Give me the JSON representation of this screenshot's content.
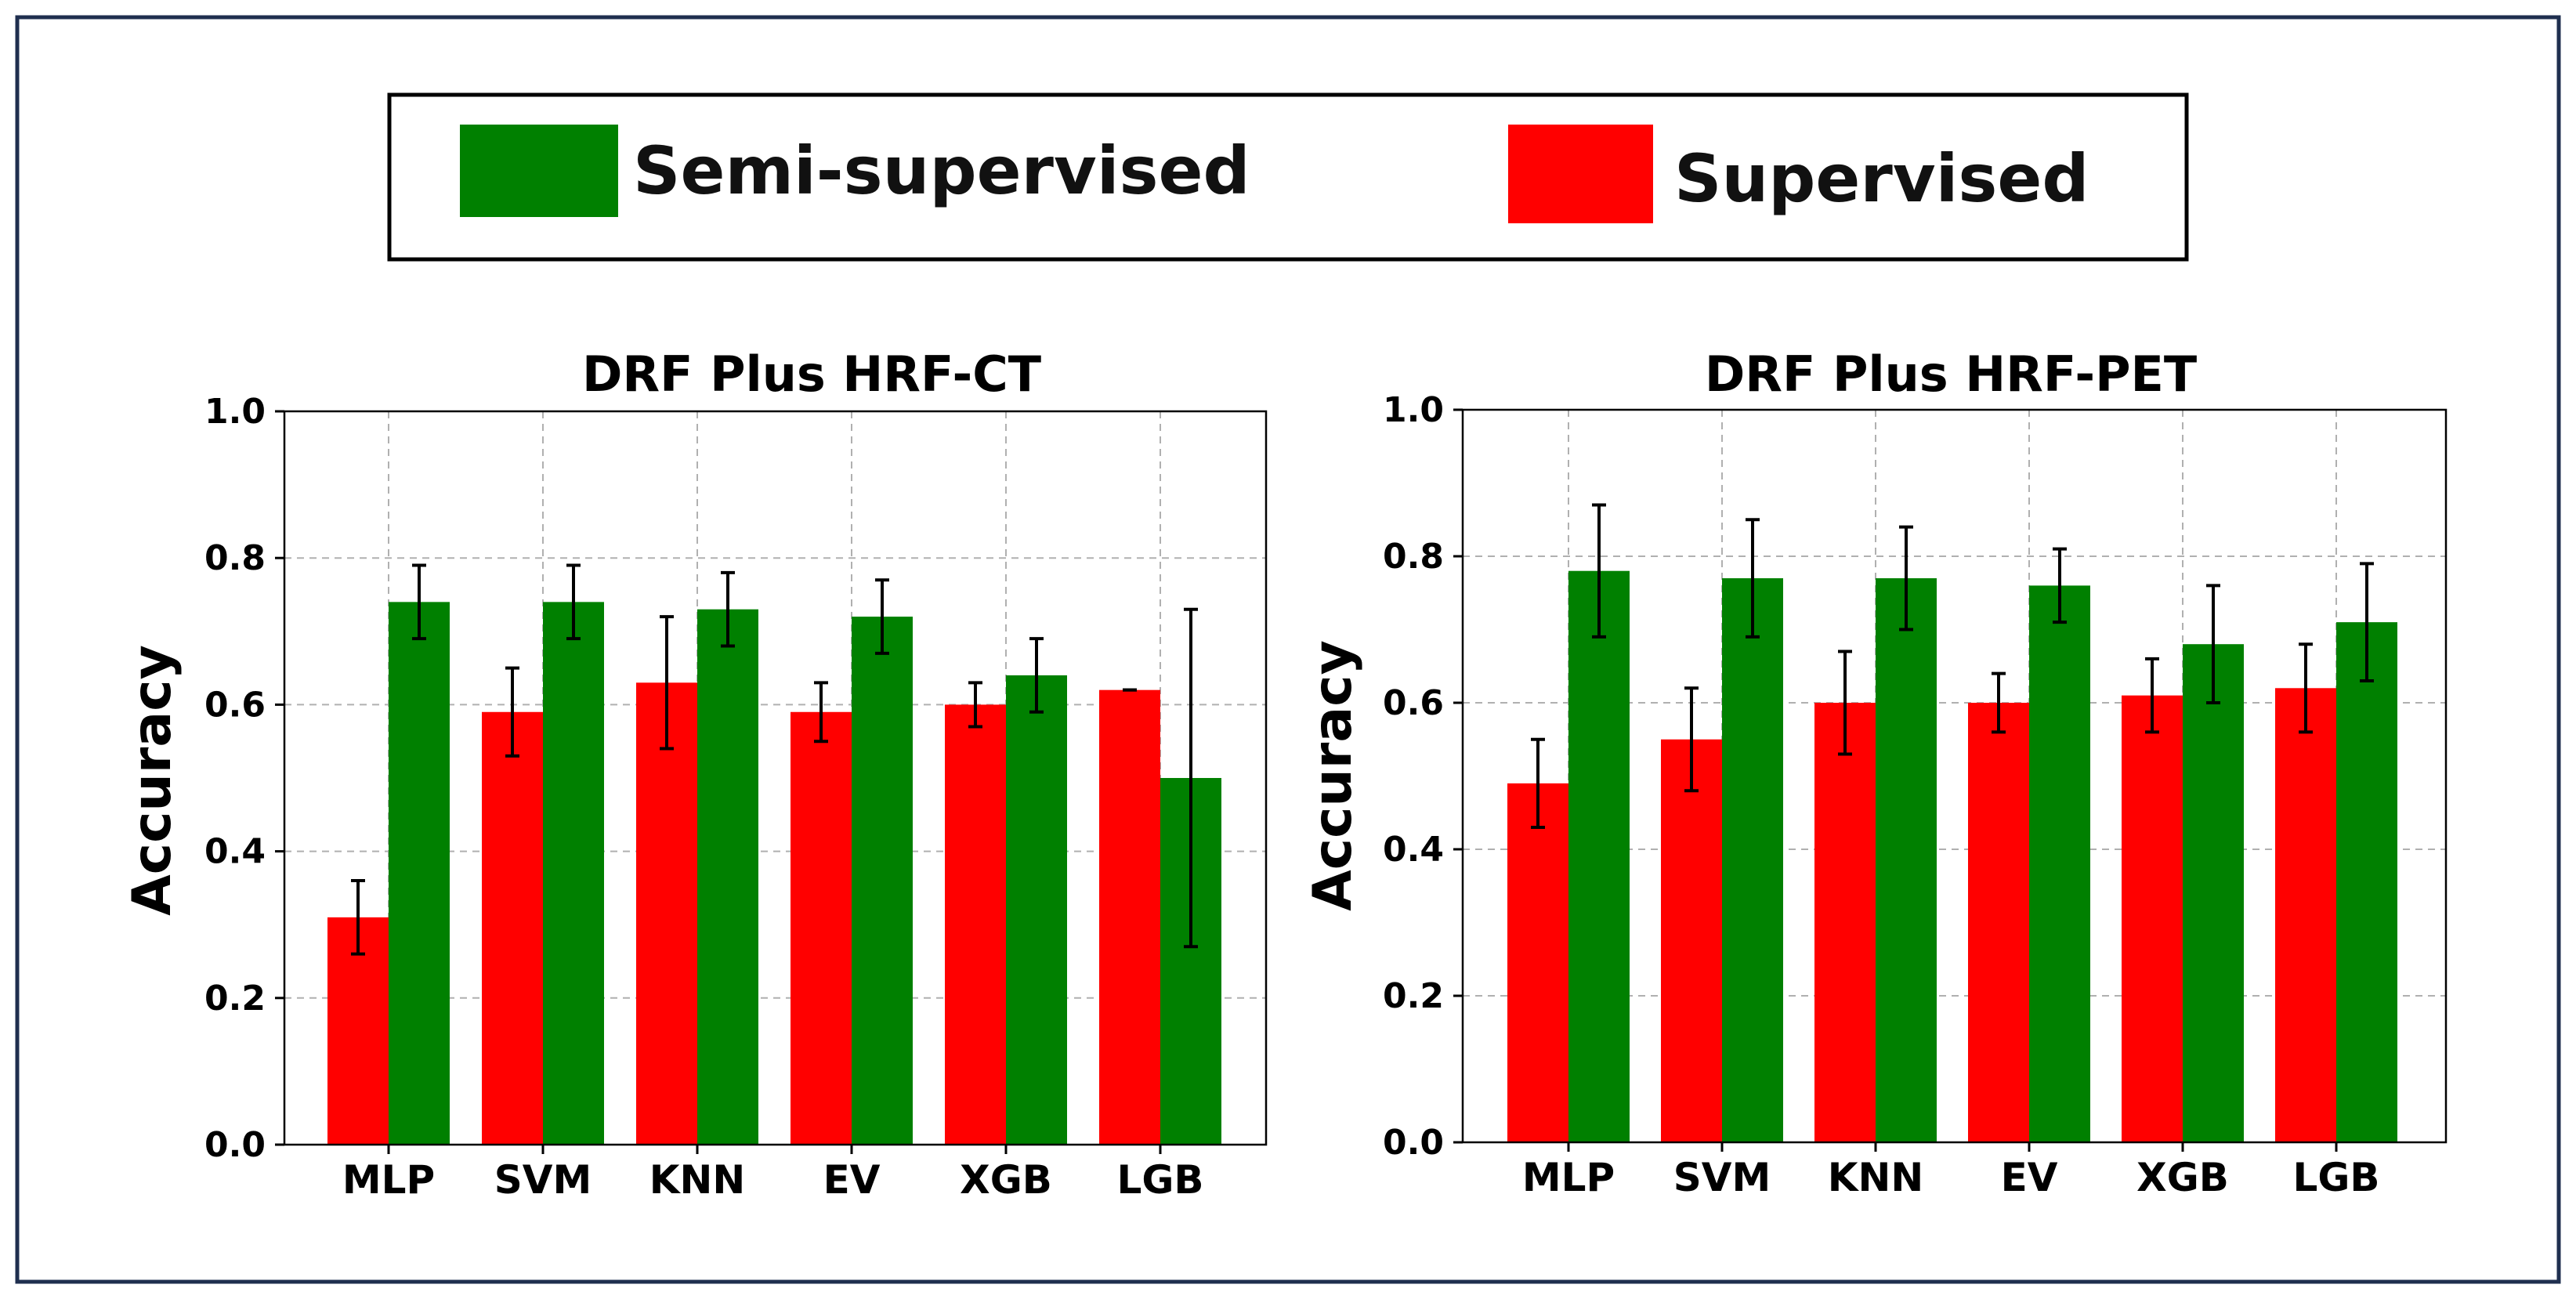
{
  "legend": {
    "items": [
      {
        "label": "Semi-supervised",
        "color": "#008000"
      },
      {
        "label": "Supervised",
        "color": "#ff0000"
      }
    ]
  },
  "colors": {
    "frame": "#1f2f4f",
    "supervised": "#ff0000",
    "semi": "#008000"
  },
  "y_ticks": [
    "0.0",
    "0.2",
    "0.4",
    "0.6",
    "0.8",
    "1.0"
  ],
  "chart_data": [
    {
      "type": "bar",
      "title": "DRF Plus HRF-CT",
      "xlabel": "",
      "ylabel": "Accuracy",
      "ylim": [
        0,
        1
      ],
      "grid": true,
      "categories": [
        "MLP",
        "SVM",
        "KNN",
        "EV",
        "XGB",
        "LGB"
      ],
      "series": [
        {
          "name": "Supervised",
          "values": [
            0.31,
            0.59,
            0.63,
            0.59,
            0.6,
            0.62
          ],
          "errors": [
            0.05,
            0.06,
            0.09,
            0.04,
            0.03,
            0.0
          ]
        },
        {
          "name": "Semi-supervised",
          "values": [
            0.74,
            0.74,
            0.73,
            0.72,
            0.64,
            0.5
          ],
          "errors": [
            0.05,
            0.05,
            0.05,
            0.05,
            0.05,
            0.23
          ]
        }
      ]
    },
    {
      "type": "bar",
      "title": "DRF Plus HRF-PET",
      "xlabel": "",
      "ylabel": "Accuracy",
      "ylim": [
        0,
        1
      ],
      "grid": true,
      "categories": [
        "MLP",
        "SVM",
        "KNN",
        "EV",
        "XGB",
        "LGB"
      ],
      "series": [
        {
          "name": "Supervised",
          "values": [
            0.49,
            0.55,
            0.6,
            0.6,
            0.61,
            0.62
          ],
          "errors": [
            0.06,
            0.07,
            0.07,
            0.04,
            0.05,
            0.06
          ]
        },
        {
          "name": "Semi-supervised",
          "values": [
            0.78,
            0.77,
            0.77,
            0.76,
            0.68,
            0.71
          ],
          "errors": [
            0.09,
            0.08,
            0.07,
            0.05,
            0.08,
            0.08
          ]
        }
      ]
    }
  ]
}
